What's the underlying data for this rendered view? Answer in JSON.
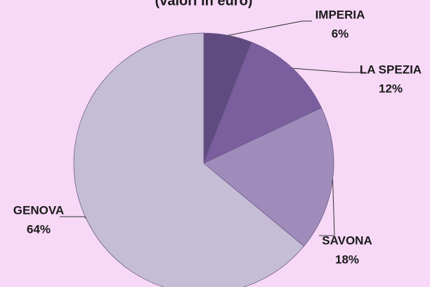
{
  "chart_data": {
    "type": "pie",
    "subtitle": "(valori in euro)",
    "categories": [
      "IMPERIA",
      "LA SPEZIA",
      "SAVONA",
      "GENOVA"
    ],
    "values": [
      6,
      12,
      18,
      64
    ],
    "value_labels": [
      "6%",
      "12%",
      "18%",
      "64%"
    ],
    "colors": [
      "#5f4b80",
      "#7a5e9e",
      "#9f8cba",
      "#c5bdd6"
    ]
  }
}
